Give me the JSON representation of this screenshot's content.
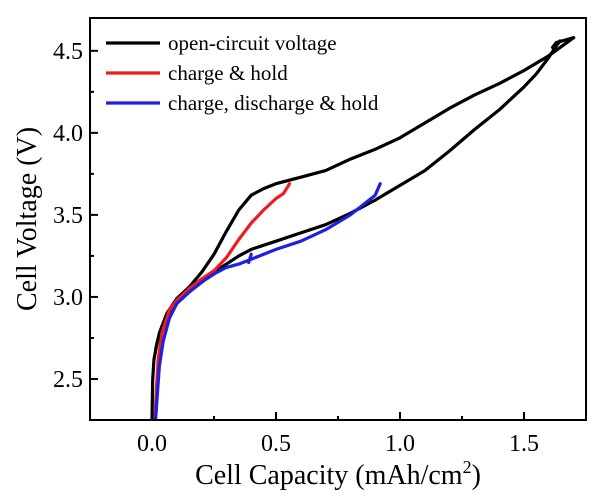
{
  "chart_data": {
    "type": "line",
    "xlabel_main": "Cell Capacity (mAh/cm",
    "xlabel_sup": "2",
    "xlabel_end": ")",
    "ylabel": "Cell Voltage (V)",
    "xlim": [
      -0.25,
      1.75
    ],
    "ylim": [
      2.25,
      4.7
    ],
    "xticks": [
      {
        "value": 0.0,
        "label": "0.0"
      },
      {
        "value": 0.5,
        "label": "0.5"
      },
      {
        "value": 1.0,
        "label": "1.0"
      },
      {
        "value": 1.5,
        "label": "1.5"
      }
    ],
    "yticks": [
      {
        "value": 2.5,
        "label": "2.5"
      },
      {
        "value": 3.0,
        "label": "3.0"
      },
      {
        "value": 3.5,
        "label": "3.5"
      },
      {
        "value": 4.0,
        "label": "4.0"
      },
      {
        "value": 4.5,
        "label": "4.5"
      }
    ],
    "grid": false,
    "legend_position": "top-left",
    "series": [
      {
        "name": "open-circuit voltage",
        "color": "#000000",
        "segments": [
          [
            [
              0.0,
              2.26
            ],
            [
              0.003,
              2.5
            ],
            [
              0.008,
              2.62
            ],
            [
              0.02,
              2.72
            ],
            [
              0.04,
              2.82
            ],
            [
              0.07,
              2.9
            ],
            [
              0.1,
              2.96
            ],
            [
              0.15,
              3.03
            ],
            [
              0.2,
              3.09
            ],
            [
              0.25,
              3.15
            ],
            [
              0.3,
              3.2
            ],
            [
              0.35,
              3.25
            ],
            [
              0.4,
              3.29
            ],
            [
              0.5,
              3.34
            ],
            [
              0.6,
              3.39
            ],
            [
              0.7,
              3.44
            ],
            [
              0.8,
              3.51
            ],
            [
              0.9,
              3.59
            ],
            [
              1.0,
              3.68
            ],
            [
              1.1,
              3.77
            ],
            [
              1.2,
              3.89
            ],
            [
              1.3,
              4.02
            ],
            [
              1.4,
              4.14
            ],
            [
              1.5,
              4.28
            ],
            [
              1.55,
              4.36
            ],
            [
              1.6,
              4.46
            ],
            [
              1.63,
              4.53
            ],
            [
              1.645,
              4.56
            ]
          ],
          [
            [
              1.615,
              4.52
            ],
            [
              1.63,
              4.55
            ],
            [
              1.665,
              4.565
            ],
            [
              1.7,
              4.58
            ]
          ],
          [
            [
              0.015,
              2.68
            ],
            [
              0.03,
              2.78
            ],
            [
              0.06,
              2.9
            ],
            [
              0.1,
              2.99
            ],
            [
              0.15,
              3.06
            ],
            [
              0.2,
              3.15
            ],
            [
              0.25,
              3.26
            ],
            [
              0.3,
              3.4
            ],
            [
              0.35,
              3.53
            ],
            [
              0.4,
              3.62
            ],
            [
              0.45,
              3.66
            ],
            [
              0.5,
              3.69
            ],
            [
              0.6,
              3.73
            ],
            [
              0.7,
              3.77
            ],
            [
              0.8,
              3.84
            ],
            [
              0.9,
              3.9
            ],
            [
              1.0,
              3.97
            ],
            [
              1.1,
              4.06
            ],
            [
              1.2,
              4.15
            ],
            [
              1.3,
              4.23
            ],
            [
              1.4,
              4.3
            ],
            [
              1.5,
              4.38
            ],
            [
              1.6,
              4.47
            ],
            [
              1.7,
              4.58
            ]
          ]
        ]
      },
      {
        "name": "charge & hold",
        "color": "#ee1c1c",
        "segments": [
          [
            [
              0.012,
              2.26
            ],
            [
              0.018,
              2.45
            ],
            [
              0.025,
              2.62
            ],
            [
              0.04,
              2.78
            ],
            [
              0.07,
              2.92
            ],
            [
              0.1,
              2.98
            ],
            [
              0.15,
              3.05
            ],
            [
              0.2,
              3.11
            ],
            [
              0.25,
              3.16
            ],
            [
              0.3,
              3.24
            ],
            [
              0.35,
              3.35
            ],
            [
              0.4,
              3.45
            ],
            [
              0.45,
              3.53
            ],
            [
              0.5,
              3.6
            ],
            [
              0.53,
              3.63
            ],
            [
              0.555,
              3.69
            ]
          ]
        ]
      },
      {
        "name": "charge, discharge & hold",
        "color": "#1f1fe0",
        "segments": [
          [
            [
              0.015,
              2.26
            ],
            [
              0.022,
              2.42
            ],
            [
              0.03,
              2.58
            ],
            [
              0.045,
              2.73
            ],
            [
              0.07,
              2.87
            ],
            [
              0.1,
              2.96
            ],
            [
              0.15,
              3.03
            ],
            [
              0.2,
              3.09
            ],
            [
              0.25,
              3.14
            ],
            [
              0.3,
              3.18
            ],
            [
              0.35,
              3.2
            ],
            [
              0.4,
              3.23
            ],
            [
              0.5,
              3.29
            ],
            [
              0.6,
              3.34
            ],
            [
              0.7,
              3.41
            ],
            [
              0.8,
              3.5
            ],
            [
              0.9,
              3.62
            ],
            [
              0.92,
              3.69
            ]
          ],
          [
            [
              0.39,
              3.21
            ],
            [
              0.4,
              3.26
            ]
          ]
        ]
      }
    ]
  }
}
